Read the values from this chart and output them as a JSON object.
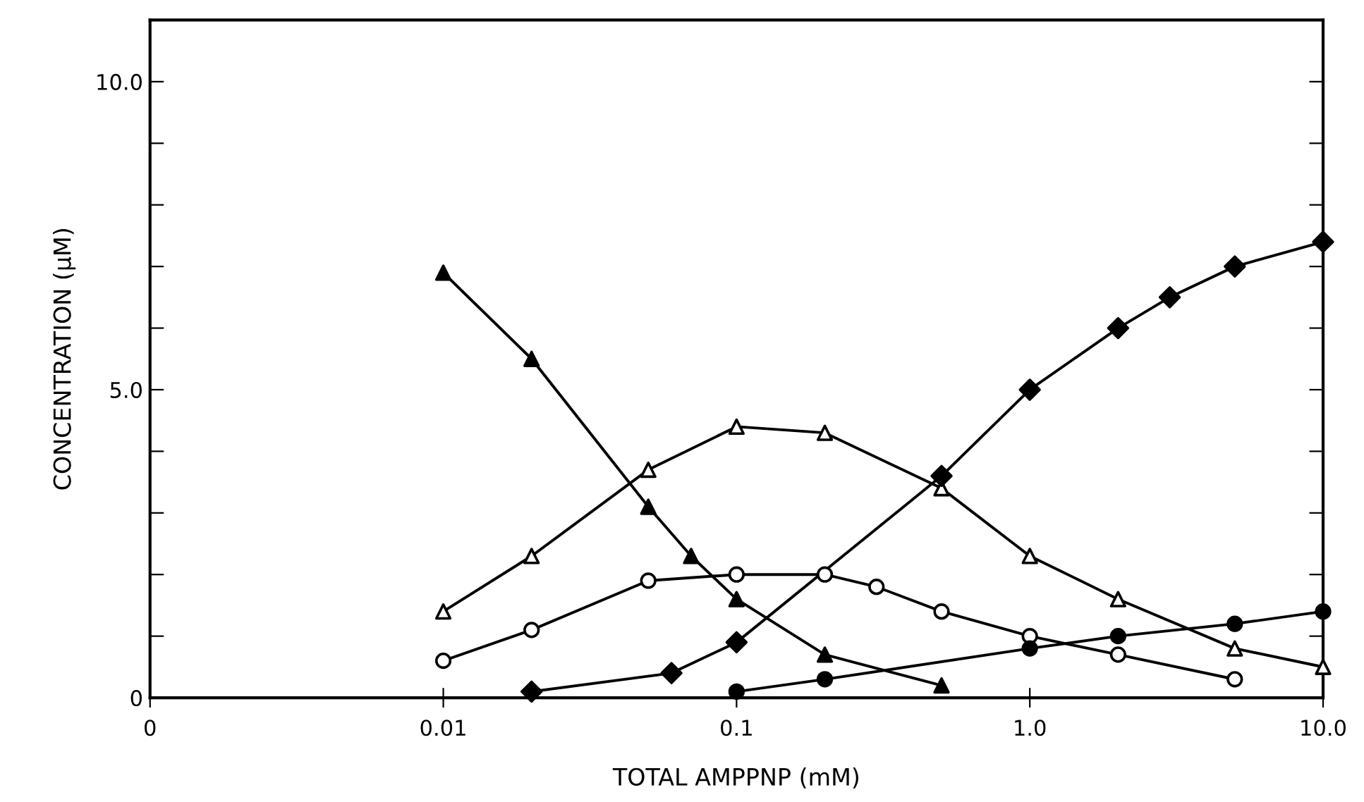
{
  "chart_data": {
    "type": "line",
    "xlabel": "TOTAL AMPPNP (mM)",
    "ylabel": "CONCENTRATION (μM)",
    "log": "x",
    "xlim": [
      0.001,
      10
    ],
    "xticks": [
      {
        "value": 0.001,
        "label": "0"
      },
      0.01,
      0.1,
      {
        "value": 1,
        "label": "1.0"
      },
      {
        "value": 10,
        "label": "10.0"
      }
    ],
    "ylim": [
      0,
      11
    ],
    "yticks": [
      0,
      {
        "value": 1,
        "label": null
      },
      {
        "value": 2,
        "label": null
      },
      {
        "value": 3,
        "label": null
      },
      {
        "value": 4,
        "label": null
      },
      {
        "value": 5,
        "label": "5.0"
      },
      {
        "value": 6,
        "label": null
      },
      {
        "value": 7,
        "label": null
      },
      {
        "value": 8,
        "label": null
      },
      {
        "value": 9,
        "label": null
      },
      {
        "value": 10,
        "label": "10.0"
      }
    ],
    "grid": false,
    "legend": false,
    "line_style": "solid",
    "series": [
      {
        "color": "#000000",
        "marker": "triangle",
        "colors": [
          "#000000",
          "#000000",
          "#000000",
          "#000000",
          "#000000",
          "#000000",
          "#000000"
        ],
        "x": [
          0.01,
          0.02,
          0.05,
          0.07,
          0.1,
          0.2,
          0.5
        ],
        "values": [
          6.9,
          5.5,
          3.1,
          2.3,
          1.6,
          0.7,
          0.2
        ]
      },
      {
        "color": "#000000",
        "marker": "triangle",
        "colors": [
          "#ffffff",
          "#ffffff",
          "#ffffff",
          "#ffffff",
          "#ffffff",
          "#ffffff",
          "#ffffff",
          "#ffffff",
          "#ffffff",
          "#ffffff"
        ],
        "x": [
          0.01,
          0.02,
          0.05,
          0.1,
          0.2,
          0.5,
          1,
          2,
          5,
          10
        ],
        "values": [
          1.4,
          2.3,
          3.7,
          4.4,
          4.3,
          3.4,
          2.3,
          1.6,
          0.8,
          0.5
        ]
      },
      {
        "color": "#000000",
        "marker": "circle",
        "colors": [
          "#ffffff",
          "#ffffff",
          "#ffffff",
          "#ffffff",
          "#ffffff",
          "#ffffff",
          "#ffffff",
          "#ffffff",
          "#ffffff",
          "#ffffff"
        ],
        "x": [
          0.01,
          0.02,
          0.05,
          0.1,
          0.2,
          0.3,
          0.5,
          1,
          2,
          5
        ],
        "values": [
          0.6,
          1.1,
          1.9,
          2.0,
          2.0,
          1.8,
          1.4,
          1.0,
          0.7,
          0.3
        ]
      },
      {
        "color": "#000000",
        "marker": "diamond",
        "colors": [
          "#000000",
          "#000000",
          "#000000",
          "#000000",
          "#000000",
          "#000000",
          "#000000",
          "#000000",
          "#000000"
        ],
        "x": [
          0.02,
          0.06,
          0.1,
          0.5,
          1,
          2,
          3,
          5,
          10
        ],
        "values": [
          0.1,
          0.4,
          0.9,
          3.6,
          5.0,
          6.0,
          6.5,
          7.0,
          7.4
        ]
      },
      {
        "color": "#000000",
        "marker": "circle",
        "colors": [
          "#000000",
          "#000000",
          "#000000",
          "#000000",
          "#000000",
          "#000000"
        ],
        "x": [
          0.1,
          0.2,
          1,
          2,
          5,
          10
        ],
        "values": [
          0.1,
          0.3,
          0.8,
          1.0,
          1.2,
          1.4
        ]
      }
    ]
  }
}
